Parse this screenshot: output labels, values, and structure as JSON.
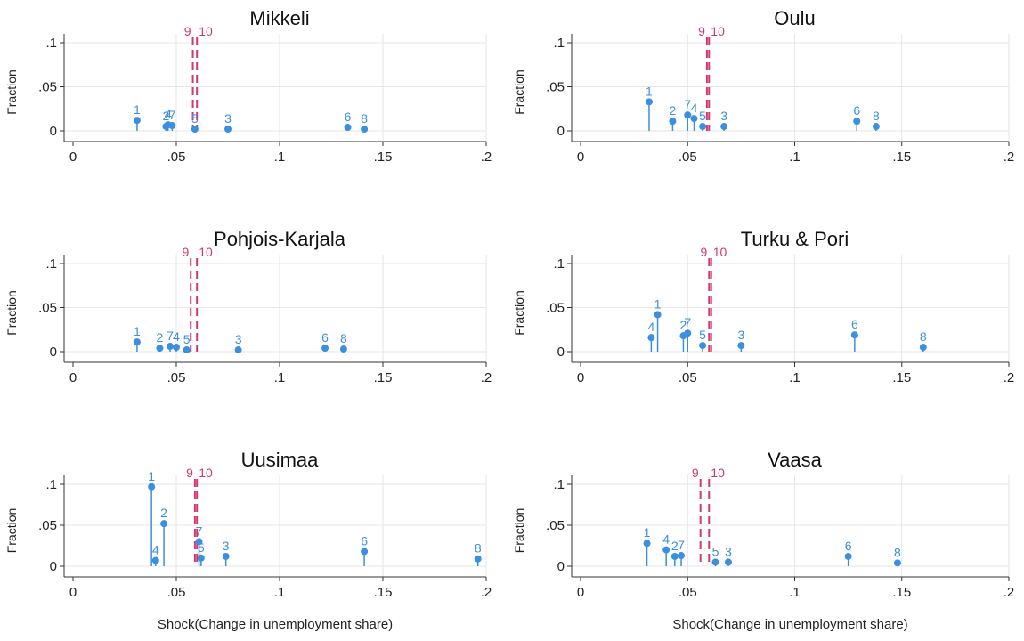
{
  "colors": {
    "spike": "#3a8fe0",
    "vline": "#d2386c",
    "grid": "#e6e6e6",
    "axis": "#333333",
    "text": "#222222"
  },
  "common": {
    "ylabel": "Fraction",
    "xlabel": "Shock(Change in unemployment share)"
  },
  "chart_data": [
    {
      "type": "scatter",
      "title": "Mikkeli",
      "xlim": [
        0,
        0.2
      ],
      "ylim": [
        0,
        0.1
      ],
      "xticks": [
        "0",
        ".05",
        ".1",
        ".15",
        ".2"
      ],
      "yticks": [
        "0",
        ".05",
        ".1"
      ],
      "vlines": [
        {
          "label": "9",
          "x": 0.058
        },
        {
          "label": "10",
          "x": 0.06
        }
      ],
      "points": [
        {
          "label": "1",
          "x": 0.031,
          "y": 0.012
        },
        {
          "label": "2",
          "x": 0.045,
          "y": 0.005
        },
        {
          "label": "4",
          "x": 0.046,
          "y": 0.007
        },
        {
          "label": "7",
          "x": 0.048,
          "y": 0.006
        },
        {
          "label": "5",
          "x": 0.059,
          "y": 0.002
        },
        {
          "label": "3",
          "x": 0.075,
          "y": 0.002
        },
        {
          "label": "6",
          "x": 0.133,
          "y": 0.004
        },
        {
          "label": "8",
          "x": 0.141,
          "y": 0.002
        }
      ]
    },
    {
      "type": "scatter",
      "title": "Oulu",
      "xlim": [
        0,
        0.2
      ],
      "ylim": [
        0,
        0.1
      ],
      "xticks": [
        "0",
        ".05",
        ".1",
        ".15",
        ".2"
      ],
      "yticks": [
        "0",
        ".05",
        ".1"
      ],
      "vlines": [
        {
          "label": "9",
          "x": 0.059
        },
        {
          "label": "10",
          "x": 0.06
        }
      ],
      "points": [
        {
          "label": "1",
          "x": 0.032,
          "y": 0.033
        },
        {
          "label": "2",
          "x": 0.043,
          "y": 0.011
        },
        {
          "label": "7",
          "x": 0.05,
          "y": 0.018
        },
        {
          "label": "4",
          "x": 0.053,
          "y": 0.014
        },
        {
          "label": "5",
          "x": 0.057,
          "y": 0.005
        },
        {
          "label": "3",
          "x": 0.067,
          "y": 0.005
        },
        {
          "label": "6",
          "x": 0.129,
          "y": 0.011
        },
        {
          "label": "8",
          "x": 0.138,
          "y": 0.005
        }
      ]
    },
    {
      "type": "scatter",
      "title": "Pohjois-Karjala",
      "xlim": [
        0,
        0.2
      ],
      "ylim": [
        0,
        0.1
      ],
      "xticks": [
        "0",
        ".05",
        ".1",
        ".15",
        ".2"
      ],
      "yticks": [
        "0",
        ".05",
        ".1"
      ],
      "vlines": [
        {
          "label": "9",
          "x": 0.057
        },
        {
          "label": "10",
          "x": 0.06
        }
      ],
      "points": [
        {
          "label": "1",
          "x": 0.031,
          "y": 0.011
        },
        {
          "label": "2",
          "x": 0.042,
          "y": 0.004
        },
        {
          "label": "7",
          "x": 0.047,
          "y": 0.006
        },
        {
          "label": "4",
          "x": 0.05,
          "y": 0.005
        },
        {
          "label": "5",
          "x": 0.055,
          "y": 0.002
        },
        {
          "label": "3",
          "x": 0.08,
          "y": 0.002
        },
        {
          "label": "6",
          "x": 0.122,
          "y": 0.004
        },
        {
          "label": "8",
          "x": 0.131,
          "y": 0.003
        }
      ]
    },
    {
      "type": "scatter",
      "title": "Turku & Pori",
      "xlim": [
        0,
        0.2
      ],
      "ylim": [
        0,
        0.1
      ],
      "xticks": [
        "0",
        ".05",
        ".1",
        ".15",
        ".2"
      ],
      "yticks": [
        "0",
        ".05",
        ".1"
      ],
      "vlines": [
        {
          "label": "9",
          "x": 0.06
        },
        {
          "label": "10",
          "x": 0.061
        }
      ],
      "points": [
        {
          "label": "4",
          "x": 0.033,
          "y": 0.016
        },
        {
          "label": "1",
          "x": 0.036,
          "y": 0.042
        },
        {
          "label": "2",
          "x": 0.048,
          "y": 0.018
        },
        {
          "label": "7",
          "x": 0.05,
          "y": 0.021
        },
        {
          "label": "5",
          "x": 0.057,
          "y": 0.007
        },
        {
          "label": "3",
          "x": 0.075,
          "y": 0.007
        },
        {
          "label": "6",
          "x": 0.128,
          "y": 0.019
        },
        {
          "label": "8",
          "x": 0.16,
          "y": 0.005
        }
      ]
    },
    {
      "type": "scatter",
      "title": "Uusimaa",
      "xlim": [
        0,
        0.2
      ],
      "ylim": [
        0,
        0.1
      ],
      "xticks": [
        "0",
        ".05",
        ".1",
        ".15",
        ".2"
      ],
      "yticks": [
        "0",
        ".05",
        ".1"
      ],
      "vlines": [
        {
          "label": "9",
          "x": 0.059
        },
        {
          "label": "10",
          "x": 0.06
        }
      ],
      "points": [
        {
          "label": "1",
          "x": 0.038,
          "y": 0.097
        },
        {
          "label": "4",
          "x": 0.04,
          "y": 0.007
        },
        {
          "label": "2",
          "x": 0.044,
          "y": 0.052
        },
        {
          "label": "7",
          "x": 0.061,
          "y": 0.03
        },
        {
          "label": "5",
          "x": 0.062,
          "y": 0.01
        },
        {
          "label": "3",
          "x": 0.074,
          "y": 0.012
        },
        {
          "label": "6",
          "x": 0.141,
          "y": 0.018
        },
        {
          "label": "8",
          "x": 0.196,
          "y": 0.009
        }
      ]
    },
    {
      "type": "scatter",
      "title": "Vaasa",
      "xlim": [
        0,
        0.2
      ],
      "ylim": [
        0,
        0.1
      ],
      "xticks": [
        "0",
        ".05",
        ".1",
        ".15",
        ".2"
      ],
      "yticks": [
        "0",
        ".05",
        ".1"
      ],
      "vlines": [
        {
          "label": "9",
          "x": 0.056
        },
        {
          "label": "10",
          "x": 0.06
        }
      ],
      "points": [
        {
          "label": "1",
          "x": 0.031,
          "y": 0.028
        },
        {
          "label": "4",
          "x": 0.04,
          "y": 0.02
        },
        {
          "label": "2",
          "x": 0.044,
          "y": 0.012
        },
        {
          "label": "7",
          "x": 0.047,
          "y": 0.013
        },
        {
          "label": "5",
          "x": 0.063,
          "y": 0.005
        },
        {
          "label": "3",
          "x": 0.069,
          "y": 0.005
        },
        {
          "label": "6",
          "x": 0.125,
          "y": 0.012
        },
        {
          "label": "8",
          "x": 0.148,
          "y": 0.004
        }
      ]
    }
  ]
}
